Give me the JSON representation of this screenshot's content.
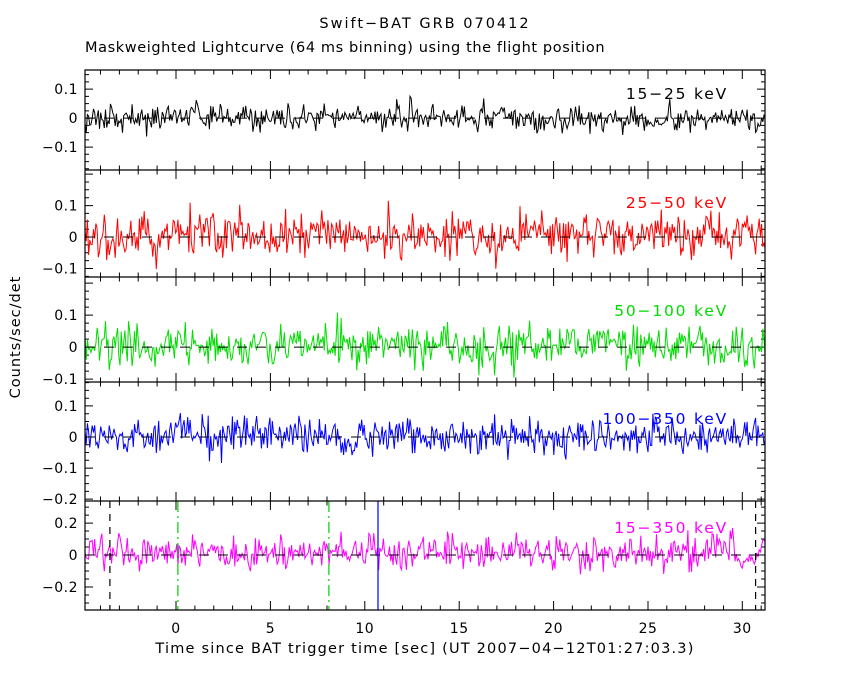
{
  "window": {
    "background": "#ffffff"
  },
  "title": "Swift−BAT GRB 070412",
  "subtitle": "Maskweighted Lightcurve (64 ms binning) using the flight position",
  "x_axis": {
    "label": "Time since BAT trigger time [sec] (UT 2007−04−12T01:27:03.3)",
    "range": [
      -4.82,
      31.2
    ],
    "major_ticks": [
      0,
      5,
      10,
      15,
      20,
      25,
      30
    ],
    "major_tick_labels": [
      "0",
      "5",
      "10",
      "15",
      "20",
      "25",
      "30"
    ],
    "minor_tick_step": 1
  },
  "y_axis": {
    "label": "Counts/sec/det"
  },
  "chart_data": {
    "type": "line",
    "description": "Five stacked mask-weighted BAT lightcurve panels; zero-mean detector noise in counts/sec/det, 64 ms bins, T-4.8 s to T+31.2 s (563 bins per band). No obvious burst pulse; faint excess in total band.",
    "bin_sec": 0.064,
    "x_range": [
      -4.82,
      31.2
    ],
    "grid": false,
    "panels": [
      {
        "band": "15−25 keV",
        "color": "#000000",
        "ylim": [
          -0.179,
          0.166
        ],
        "major_ticks": [
          0.1,
          0,
          -0.1
        ],
        "tick_labels": [
          "0.1",
          "0",
          "−0.1"
        ],
        "minor_step": 0.025,
        "noise_mean": 0.0,
        "noise_sigma": 0.022,
        "seed": 11
      },
      {
        "band": "25−50 keV",
        "color": "#ff0000",
        "ylim": [
          -0.127,
          0.213
        ],
        "major_ticks": [
          0.1,
          0,
          -0.1
        ],
        "tick_labels": [
          "0.1",
          "0",
          "−0.1"
        ],
        "minor_step": 0.025,
        "noise_mean": 0.005,
        "noise_sigma": 0.034,
        "seed": 22
      },
      {
        "band": "50−100 keV",
        "color": "#00dd00",
        "ylim": [
          -0.109,
          0.219
        ],
        "major_ticks": [
          0.1,
          0,
          -0.1
        ],
        "tick_labels": [
          "0.1",
          "0",
          "−0.1"
        ],
        "minor_step": 0.025,
        "noise_mean": 0.003,
        "noise_sigma": 0.032,
        "seed": 33
      },
      {
        "band": "100−350 keV",
        "color": "#0000ff",
        "ylim": [
          -0.206,
          0.177
        ],
        "major_ticks": [
          0.1,
          0,
          -0.1,
          -0.2
        ],
        "tick_labels": [
          "0.1",
          "0",
          "−0.1",
          "−0.2"
        ],
        "minor_step": 0.025,
        "noise_mean": 0.0,
        "noise_sigma": 0.028,
        "seed": 44
      },
      {
        "band": "15−350 keV",
        "color": "#ff00ff",
        "ylim": [
          -0.344,
          0.338
        ],
        "major_ticks": [
          0.2,
          0,
          -0.2
        ],
        "tick_labels": [
          "0.2",
          "0",
          "−0.2"
        ],
        "minor_step": 0.05,
        "noise_mean": 0.012,
        "noise_sigma": 0.052,
        "seed": 55
      }
    ],
    "zero_line": {
      "color": "#000000",
      "style": "dashed"
    },
    "event_markers": [
      {
        "time": -3.5,
        "style": "dashed",
        "color": "#000000",
        "panel": "15−350 keV",
        "name": "data-start-marker"
      },
      {
        "time": 0.1,
        "style": "dash-dot",
        "color": "#00cc00",
        "panel": "15−350 keV",
        "name": "t90-start-marker"
      },
      {
        "time": 8.1,
        "style": "dash-dot",
        "color": "#00cc00",
        "panel": "15−350 keV",
        "name": "t90-end-marker"
      },
      {
        "time": 10.7,
        "style": "solid",
        "color": "#0000ff",
        "panel": "15−350 keV",
        "name": "slew-marker"
      },
      {
        "time": 30.7,
        "style": "dashed",
        "color": "#000000",
        "panel": "15−350 keV",
        "name": "data-end-marker"
      }
    ]
  }
}
